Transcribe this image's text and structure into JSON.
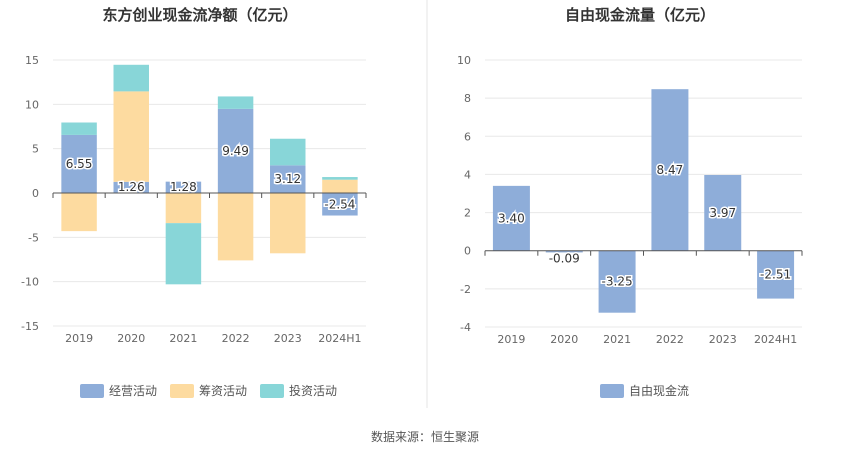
{
  "charts": {
    "cashflow": {
      "title": "东方创业现金流净额（亿元）",
      "type": "bar",
      "stacked": true,
      "categories": [
        "2019",
        "2020",
        "2021",
        "2022",
        "2023",
        "2024H1"
      ],
      "yticks": [
        "15",
        "10",
        "5",
        "0",
        "-5",
        "-10",
        "-15"
      ],
      "ylim": [
        -15,
        15
      ],
      "series": [
        {
          "name": "经营活动",
          "color": "#8eadd9",
          "values": [
            6.55,
            1.26,
            1.28,
            9.49,
            3.12,
            -2.54
          ],
          "labels": [
            "6.55",
            "1.26",
            "1.28",
            "9.49",
            "3.12",
            "-2.54"
          ]
        },
        {
          "name": "筹资活动",
          "color": "#fddba0",
          "values": [
            -4.3,
            10.2,
            -3.4,
            -7.6,
            -6.8,
            1.5
          ]
        },
        {
          "name": "投资活动",
          "color": "#88d6d8",
          "values": [
            1.4,
            3.0,
            -6.9,
            1.4,
            3.0,
            0.3
          ]
        }
      ],
      "legend_position": "bottom"
    },
    "fcf": {
      "title": "自由现金流量（亿元）",
      "type": "bar",
      "categories": [
        "2019",
        "2020",
        "2021",
        "2022",
        "2023",
        "2024H1"
      ],
      "yticks": [
        "10",
        "8",
        "6",
        "4",
        "2",
        "0",
        "-2",
        "-4"
      ],
      "ylim": [
        -4,
        10
      ],
      "series": [
        {
          "name": "自由现金流",
          "color": "#8eadd9",
          "values": [
            3.4,
            -0.09,
            -3.25,
            8.47,
            3.97,
            -2.51
          ],
          "labels": [
            "3.40",
            "-0.09",
            "-3.25",
            "8.47",
            "3.97",
            "-2.51"
          ]
        }
      ],
      "legend_position": "bottom"
    }
  },
  "chart_data": [
    {
      "type": "bar",
      "title": "东方创业现金流净额（亿元）",
      "categories": [
        "2019",
        "2020",
        "2021",
        "2022",
        "2023",
        "2024H1"
      ],
      "series": [
        {
          "name": "经营活动",
          "values": [
            6.55,
            1.26,
            1.28,
            9.49,
            3.12,
            -2.54
          ]
        },
        {
          "name": "筹资活动",
          "values": [
            -4.3,
            10.2,
            -3.4,
            -7.6,
            -6.8,
            1.5
          ]
        },
        {
          "name": "投资活动",
          "values": [
            1.4,
            3.0,
            -6.9,
            1.4,
            3.0,
            0.3
          ]
        }
      ],
      "ylim": [
        -15,
        15
      ],
      "grid": true,
      "legend": "bottom"
    },
    {
      "type": "bar",
      "title": "自由现金流量（亿元）",
      "categories": [
        "2019",
        "2020",
        "2021",
        "2022",
        "2023",
        "2024H1"
      ],
      "series": [
        {
          "name": "自由现金流",
          "values": [
            3.4,
            -0.09,
            -3.25,
            8.47,
            3.97,
            -2.51
          ]
        }
      ],
      "ylim": [
        -4,
        10
      ],
      "grid": true,
      "legend": "bottom"
    }
  ],
  "footer": {
    "source": "数据来源：恒生聚源"
  }
}
